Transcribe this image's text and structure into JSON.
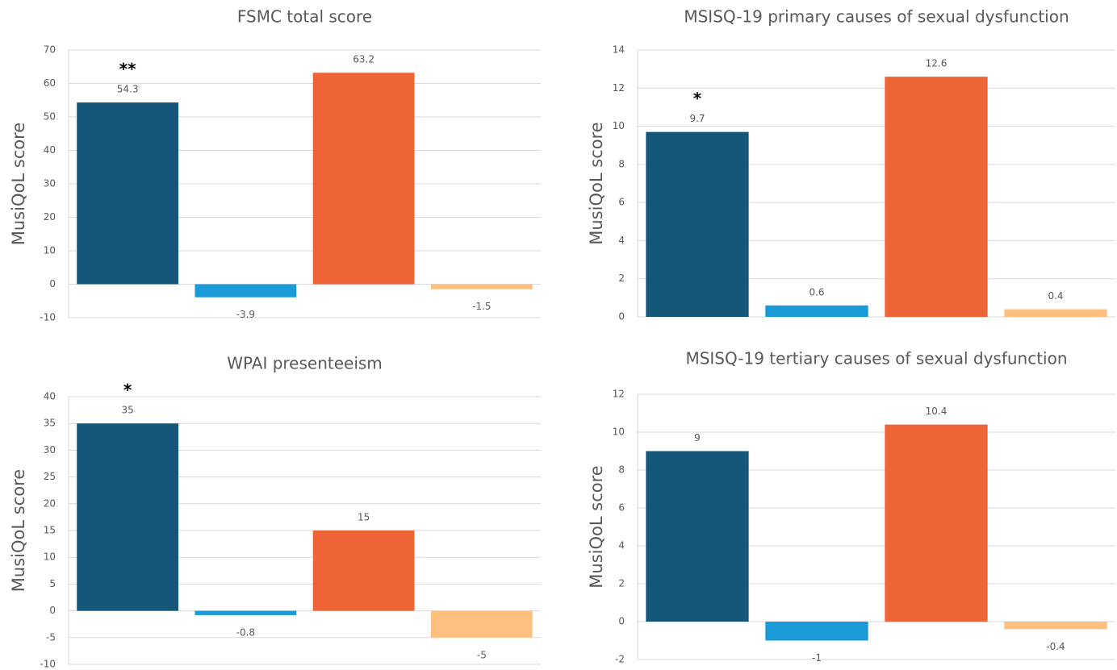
{
  "chart_data": [
    {
      "type": "bar",
      "title": "FSMC total score",
      "ylabel": "MusiQoL score",
      "categories": [
        null,
        null,
        null,
        null
      ],
      "values": [
        54.3,
        -3.9,
        63.2,
        -1.5
      ],
      "significance": [
        "**",
        null,
        null,
        null
      ],
      "colors": [
        "#155778",
        "#1a9ad6",
        "#ee6436",
        "#fdc07f"
      ],
      "ylim": [
        -10,
        70
      ],
      "yticks": [
        -10,
        0,
        10,
        20,
        30,
        40,
        50,
        60,
        70
      ],
      "grid": true
    },
    {
      "type": "bar",
      "title": "MSISQ-19 primary causes of sexual dysfunction",
      "ylabel": "MusiQoL score",
      "categories": [
        null,
        null,
        null,
        null
      ],
      "values": [
        9.7,
        0.6,
        12.6,
        0.4
      ],
      "significance": [
        "*",
        null,
        null,
        null
      ],
      "colors": [
        "#155778",
        "#1a9ad6",
        "#ee6436",
        "#fdc07f"
      ],
      "ylim": [
        0,
        14
      ],
      "yticks": [
        0,
        2,
        4,
        6,
        8,
        10,
        12,
        14
      ],
      "grid": true
    },
    {
      "type": "bar",
      "title": "WPAI presenteeism",
      "ylabel": "MusiQoL score",
      "categories": [
        null,
        null,
        null,
        null
      ],
      "values": [
        35,
        -0.8,
        15,
        -5
      ],
      "significance": [
        "*",
        null,
        null,
        null
      ],
      "colors": [
        "#155778",
        "#1a9ad6",
        "#ee6436",
        "#fdc07f"
      ],
      "ylim": [
        -10,
        40
      ],
      "yticks": [
        -10,
        -5,
        0,
        5,
        10,
        15,
        20,
        25,
        30,
        35,
        40
      ],
      "grid": true
    },
    {
      "type": "bar",
      "title": "MSISQ-19 tertiary causes of sexual dysfunction",
      "ylabel": "MusiQoL score",
      "categories": [
        null,
        null,
        null,
        null
      ],
      "values": [
        9,
        -1,
        10.4,
        -0.4
      ],
      "significance": [
        null,
        null,
        null,
        null
      ],
      "colors": [
        "#155778",
        "#1a9ad6",
        "#ee6436",
        "#fdc07f"
      ],
      "ylim": [
        -2,
        12
      ],
      "yticks": [
        -2,
        0,
        2,
        4,
        6,
        8,
        10,
        12
      ],
      "grid": true
    }
  ]
}
